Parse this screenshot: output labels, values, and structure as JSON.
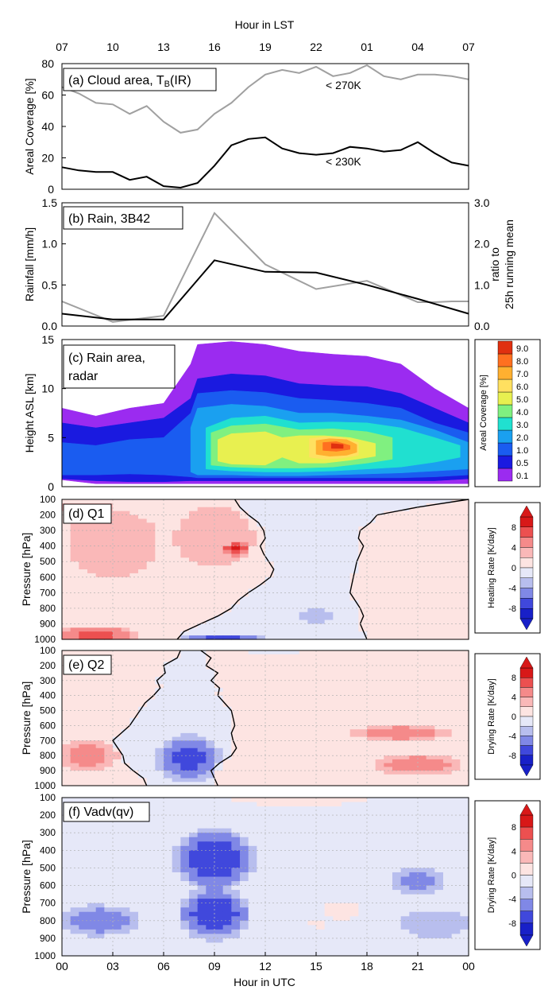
{
  "figure": {
    "top_axis_title": "Hour in LST",
    "bottom_axis_title": "Hour in UTC",
    "lst_ticks": [
      "07",
      "10",
      "13",
      "16",
      "19",
      "22",
      "01",
      "04",
      "07"
    ],
    "utc_ticks": [
      "00",
      "03",
      "06",
      "09",
      "12",
      "15",
      "18",
      "21",
      "00"
    ]
  },
  "chart_data": [
    {
      "id": "a",
      "type": "line",
      "title": "(a) Cloud area, T",
      "title_sub": "B",
      "title_suffix": "(IR)",
      "ylabel": "Areal Coverage [%]",
      "ylim": [
        0,
        80
      ],
      "yticks": [
        "0",
        "20",
        "40",
        "60",
        "80"
      ],
      "x": [
        0,
        1,
        2,
        3,
        4,
        5,
        6,
        7,
        8,
        9,
        10,
        11,
        12,
        13,
        14,
        15,
        16,
        17,
        18,
        19,
        20,
        21,
        22,
        23,
        24
      ],
      "series": [
        {
          "name": "< 270K",
          "label": "< 270K",
          "color": "#a0a0a0",
          "values": [
            65,
            61,
            55,
            54,
            48,
            53,
            43,
            36,
            38,
            48,
            55,
            65,
            73,
            76,
            74,
            78,
            72,
            74,
            79,
            72,
            70,
            73,
            73,
            72,
            70
          ]
        },
        {
          "name": "< 230K",
          "label": "< 230K",
          "color": "#000000",
          "values": [
            14,
            12,
            11,
            11,
            6,
            8,
            2,
            1,
            4,
            15,
            28,
            32,
            33,
            26,
            23,
            22,
            23,
            27,
            26,
            24,
            25,
            30,
            23,
            17,
            15
          ]
        }
      ]
    },
    {
      "id": "b",
      "type": "line",
      "title": "(b) Rain, 3B42",
      "ylabel": "Rainfall [mm/h]",
      "ylim": [
        0,
        1.5
      ],
      "yticks": [
        "0.0",
        "0.5",
        "1.0",
        "1.5"
      ],
      "y2label_line1": "ratio to",
      "y2label_line2": "25h running mean",
      "y2lim": [
        0,
        3
      ],
      "y2ticks": [
        "0.0",
        "1.0",
        "2.0",
        "3.0"
      ],
      "series": [
        {
          "name": "rainfall",
          "axis": "left",
          "color": "#000000",
          "x": [
            0,
            3,
            6,
            9,
            12,
            15,
            18,
            21,
            24
          ],
          "values": [
            0.15,
            0.08,
            0.08,
            0.8,
            0.66,
            0.65,
            0.5,
            0.33,
            0.15
          ]
        },
        {
          "name": "ratio",
          "axis": "right",
          "color": "#a0a0a0",
          "x": [
            0,
            3,
            6,
            9,
            12,
            15,
            18,
            21,
            22,
            23,
            24
          ],
          "values": [
            0.6,
            0.1,
            0.25,
            2.75,
            1.5,
            0.9,
            1.1,
            0.58,
            0.58,
            0.6,
            0.6
          ]
        }
      ]
    },
    {
      "id": "c",
      "type": "heatmap",
      "title_line1": "(c) Rain area,",
      "title_line2": "radar",
      "ylabel": "Height ASL [km]",
      "ylim": [
        0,
        15
      ],
      "yticks": [
        "0",
        "5",
        "10",
        "15"
      ],
      "colorbar_title": "Areal Coverage [%]",
      "colorbar_levels": [
        "0.1",
        "0.5",
        "1.0",
        "2.0",
        "3.0",
        "4.0",
        "5.0",
        "6.0",
        "7.0",
        "8.0",
        "9.0"
      ],
      "colorbar_colors": [
        "#9b2bf0",
        "#1a1ae0",
        "#1a5cf0",
        "#1aa0f0",
        "#20e0d0",
        "#80f080",
        "#e8f050",
        "#ffe060",
        "#ffb030",
        "#ff7020",
        "#e03010"
      ],
      "layers": [
        {
          "level": "0.1",
          "color": "#9b2bf0",
          "x": [
            0,
            2,
            4,
            6,
            7.6,
            8,
            10,
            12,
            14,
            16,
            18,
            20,
            22,
            24
          ],
          "top": [
            8,
            7.2,
            8,
            8.5,
            12.5,
            14.5,
            14.8,
            14.5,
            13.8,
            13.5,
            13.3,
            12.5,
            10,
            8
          ],
          "bottom": [
            0.7,
            0.3,
            0.3,
            0.3,
            0.3,
            0.3,
            0.3,
            0.3,
            0.3,
            0.3,
            0.3,
            0.3,
            0.3,
            0.3
          ]
        },
        {
          "level": "0.5",
          "color": "#1a1ae0",
          "x": [
            0,
            2,
            4,
            6,
            7.6,
            8,
            10,
            12,
            14,
            16,
            18,
            20,
            22,
            24
          ],
          "top": [
            6.5,
            6,
            6.5,
            7,
            9,
            11,
            11.5,
            11.3,
            10.5,
            10.3,
            10.2,
            9.5,
            8,
            6.5
          ],
          "bottom": [
            0.8,
            0.6,
            0.5,
            0.5,
            0.6,
            0.6,
            0.6,
            0.6,
            0.6,
            0.6,
            0.6,
            0.6,
            0.6,
            0.8
          ]
        },
        {
          "level": "1.0",
          "color": "#1a5cf0",
          "x": [
            0,
            2,
            4,
            6,
            7.6,
            8,
            10,
            12,
            14,
            16,
            18,
            20,
            22,
            24
          ],
          "top": [
            4.5,
            4.2,
            4.8,
            5,
            7.5,
            9.5,
            9.8,
            9.6,
            9,
            8.8,
            8.5,
            8,
            6.5,
            5.5
          ],
          "bottom": [
            1.2,
            1.2,
            1.3,
            1.2,
            1,
            0.9,
            0.9,
            0.9,
            0.9,
            0.9,
            0.9,
            0.9,
            1,
            1.2
          ]
        },
        {
          "level": "2.0",
          "color": "#1aa0f0",
          "x": [
            7.6,
            8,
            10,
            12,
            14,
            16,
            18,
            20,
            22,
            24
          ],
          "top": [
            6,
            8,
            8.4,
            8.2,
            7.5,
            7.5,
            7.2,
            6.8,
            5.8,
            4.5
          ],
          "bottom": [
            1.5,
            1.2,
            1.2,
            1.1,
            1.1,
            1.2,
            1.3,
            1.4,
            1.6,
            1.8
          ]
        },
        {
          "level": "3.0",
          "color": "#20e0d0",
          "x": [
            8.5,
            10,
            12,
            14,
            16,
            18,
            20,
            22,
            23.5
          ],
          "top": [
            6,
            7,
            7.2,
            6.5,
            6.6,
            6.5,
            6,
            5,
            4.2
          ],
          "bottom": [
            1.8,
            1.6,
            1.5,
            1.5,
            1.6,
            1.8,
            2,
            2.5,
            3
          ]
        },
        {
          "level": "4.0",
          "color": "#80f080",
          "x": [
            8.8,
            10,
            12,
            14,
            16,
            18,
            19.5
          ],
          "top": [
            5.5,
            6.2,
            6.4,
            5.8,
            5.9,
            5.6,
            5
          ],
          "bottom": [
            2.2,
            2,
            1.9,
            1.9,
            2,
            2.4,
            2.8
          ]
        },
        {
          "level": "5.0",
          "color": "#e8f050",
          "x": [
            9.2,
            10,
            12,
            13,
            14,
            15.5,
            17,
            18.5
          ],
          "top": [
            4.8,
            5.4,
            5.6,
            5,
            5.2,
            5.2,
            5,
            4.4
          ],
          "bottom": [
            2.6,
            2.3,
            2.2,
            3,
            2.4,
            2.4,
            2.7,
            3.1
          ]
        },
        {
          "level": "6.0",
          "color": "#ffe060",
          "x": [
            14.6,
            15.5,
            16.5,
            17.5
          ],
          "top": [
            4.9,
            5.1,
            5,
            4.5
          ],
          "bottom": [
            3,
            2.8,
            2.9,
            3.2
          ]
        },
        {
          "level": "7.0",
          "color": "#ffb030",
          "x": [
            15,
            15.8,
            16.8,
            17.4
          ],
          "top": [
            4.7,
            4.9,
            4.8,
            4.3
          ],
          "bottom": [
            3.3,
            3.1,
            3.2,
            3.5
          ]
        },
        {
          "level": "8.0",
          "color": "#ff7020",
          "x": [
            15.4,
            16.2,
            17
          ],
          "top": [
            4.5,
            4.6,
            4.2
          ],
          "bottom": [
            3.7,
            3.6,
            3.8
          ]
        },
        {
          "level": "9.0",
          "color": "#e03010",
          "x": [
            15.9,
            16.6
          ],
          "top": [
            4.4,
            4.3
          ],
          "bottom": [
            3.9,
            3.9
          ]
        }
      ]
    },
    {
      "id": "d",
      "type": "heatmap",
      "title": "(d) Q1",
      "ylabel": "Pressure [hPa]",
      "ylim": [
        1000,
        100
      ],
      "yticks": [
        "100",
        "200",
        "300",
        "400",
        "500",
        "600",
        "700",
        "800",
        "900",
        "1000"
      ],
      "colorbar_title": "Heating Rate [K/day]",
      "colorbar_ticks": [
        "8",
        "4",
        "0",
        "-4",
        "-8"
      ],
      "colorbar_levels": [
        9,
        7,
        5,
        3,
        1,
        -1,
        -3,
        -5,
        -7,
        -9
      ],
      "zero_contour": {
        "p": [
          100,
          150,
          200,
          250,
          300,
          350,
          400,
          450,
          500,
          550,
          600,
          650,
          700,
          750,
          800,
          850,
          900,
          950,
          1000
        ],
        "x_left": [
          10.2,
          10.5,
          11,
          11.6,
          11.9,
          12,
          11.7,
          11.9,
          12.2,
          12.5,
          12.3,
          11.7,
          11,
          10.4,
          10,
          9.2,
          8.2,
          7.2,
          6.8
        ],
        "x_right": [
          24,
          21,
          18.6,
          18.2,
          17.6,
          17.5,
          17.8,
          17.6,
          17.4,
          17.3,
          17.2,
          17.1,
          17,
          17.3,
          17.6,
          17.8,
          17.6,
          17.8,
          18
        ]
      },
      "blobs": [
        {
          "x": 3,
          "p": 380,
          "rx": 3.5,
          "rp": 280,
          "v": 2.5
        },
        {
          "x": 9,
          "p": 340,
          "rx": 3,
          "rp": 250,
          "v": 2.5
        },
        {
          "x": 10.3,
          "p": 420,
          "rx": 0.8,
          "rp": 50,
          "v": 6
        },
        {
          "x": 2,
          "p": 970,
          "rx": 3,
          "rp": 60,
          "v": 6
        },
        {
          "x": 1.5,
          "p": 150,
          "rx": 1.8,
          "rp": 40,
          "v": 3
        },
        {
          "x": 9.5,
          "p": 990,
          "rx": 2.5,
          "rp": 25,
          "v": -6
        },
        {
          "x": 15,
          "p": 850,
          "rx": 1.5,
          "rp": 70,
          "v": -2
        }
      ]
    },
    {
      "id": "e",
      "type": "heatmap",
      "title": "(e) Q2",
      "ylabel": "Pressure [hPa]",
      "ylim": [
        1000,
        100
      ],
      "yticks": [
        "100",
        "200",
        "300",
        "400",
        "500",
        "600",
        "700",
        "800",
        "900",
        "1000"
      ],
      "colorbar_title": "Drying Rate [K/day]",
      "colorbar_ticks": [
        "8",
        "4",
        "0",
        "-4",
        "-8"
      ],
      "colorbar_levels": [
        9,
        7,
        5,
        3,
        1,
        -1,
        -3,
        -5,
        -7,
        -9
      ],
      "zero_contour": {
        "p": [
          100,
          150,
          200,
          250,
          300,
          350,
          400,
          450,
          500,
          550,
          600,
          650,
          700,
          750,
          800,
          850,
          900,
          950,
          1000
        ],
        "x_left": [
          7,
          6.8,
          6,
          6.1,
          5.6,
          5.8,
          5.4,
          4.9,
          4.6,
          4.3,
          4,
          3.5,
          3,
          3.3,
          3.6,
          3.7,
          4.2,
          4.8,
          5
        ],
        "x_right": [
          8.2,
          8.8,
          8.5,
          9.2,
          8.8,
          9.3,
          9.2,
          9.6,
          10,
          10.1,
          10.2,
          10,
          10.1,
          10.3,
          10,
          9.3,
          8.8,
          9,
          9.2
        ]
      },
      "blobs": [
        {
          "x": 7.5,
          "p": 820,
          "rx": 2.2,
          "rp": 180,
          "v": -6
        },
        {
          "x": 1.5,
          "p": 800,
          "rx": 2,
          "rp": 120,
          "v": 5
        },
        {
          "x": 20,
          "p": 650,
          "rx": 3.5,
          "rp": 60,
          "v": 5
        },
        {
          "x": 21,
          "p": 860,
          "rx": 3,
          "rp": 80,
          "v": 5
        },
        {
          "x": 12.5,
          "p": 120,
          "rx": 3.5,
          "rp": 20,
          "v": -1.5
        }
      ]
    },
    {
      "id": "f",
      "type": "heatmap",
      "title": "(f) Vadv(qv)",
      "ylabel": "Pressure [hPa]",
      "ylim": [
        1000,
        100
      ],
      "yticks": [
        "100",
        "200",
        "300",
        "400",
        "500",
        "600",
        "700",
        "800",
        "900",
        "1000"
      ],
      "colorbar_title": "Drying Rate [K/day]",
      "colorbar_ticks": [
        "8",
        "4",
        "0",
        "-4",
        "-8"
      ],
      "colorbar_levels": [
        9,
        7,
        5,
        3,
        1,
        -1,
        -3,
        -5,
        -7,
        -9
      ],
      "blobs": [
        {
          "x": 9,
          "p": 450,
          "rx": 2.6,
          "rp": 200,
          "v": -7
        },
        {
          "x": 9,
          "p": 760,
          "rx": 2.4,
          "rp": 170,
          "v": -7
        },
        {
          "x": 2.2,
          "p": 800,
          "rx": 2.8,
          "rp": 100,
          "v": -5
        },
        {
          "x": 21,
          "p": 580,
          "rx": 1.8,
          "rp": 90,
          "v": -4
        },
        {
          "x": 22,
          "p": 820,
          "rx": 2.5,
          "rp": 90,
          "v": -3
        },
        {
          "x": 16.5,
          "p": 740,
          "rx": 1.6,
          "rp": 70,
          "v": 2
        },
        {
          "x": 15.2,
          "p": 820,
          "rx": 0.8,
          "rp": 40,
          "v": 2
        },
        {
          "x": 14,
          "p": 120,
          "rx": 7,
          "rp": 40,
          "v": 1.5
        }
      ]
    }
  ]
}
